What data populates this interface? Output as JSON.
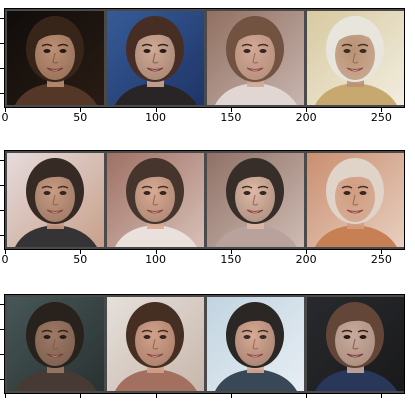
{
  "figure": {
    "background": "#ffffff",
    "panel_frame_color": "#4a4a4a",
    "x_tick_labels": [
      "0",
      "50",
      "100",
      "150",
      "200",
      "250"
    ]
  },
  "rows": [
    {
      "show_tick_labels": true,
      "faces": [
        {
          "name": "face-1-1",
          "bg": "#0f0c0a",
          "bg2": "#2a1c14",
          "skin": "#c99a7c",
          "hair": "#3a2619",
          "shirt": "#5a3a2a"
        },
        {
          "name": "face-1-2",
          "bg": "#3a5f9c",
          "bg2": "#1f3568",
          "skin": "#e0b49a",
          "hair": "#4a2e20",
          "shirt": "#2b2422"
        },
        {
          "name": "face-1-3",
          "bg": "#8c6a5a",
          "bg2": "#c8b6b0",
          "skin": "#d2a893",
          "hair": "#6b4a37",
          "shirt": "#e4dad6"
        },
        {
          "name": "face-1-4",
          "bg": "#d6c79a",
          "bg2": "#f2ede0",
          "skin": "#b68a6a",
          "hair": "#e8e4dc",
          "shirt": "#c4a264"
        }
      ]
    },
    {
      "show_tick_labels": true,
      "faces": [
        {
          "name": "face-2-1",
          "bg": "#e8e0e4",
          "bg2": "#c8a08a",
          "skin": "#c89a82",
          "hair": "#2a201c",
          "shirt": "#2a2a30"
        },
        {
          "name": "face-2-2",
          "bg": "#9a6a5e",
          "bg2": "#d8c0b8",
          "skin": "#d8a890",
          "hair": "#3a2a22",
          "shirt": "#ece4e0"
        },
        {
          "name": "face-2-3",
          "bg": "#8a6a60",
          "bg2": "#d0bcb4",
          "skin": "#e0b8a4",
          "hair": "#2c221e",
          "shirt": "#b8a09a"
        },
        {
          "name": "face-2-4",
          "bg": "#c88a6a",
          "bg2": "#e8d0c0",
          "skin": "#d09a7c",
          "hair": "#e0d4c8",
          "shirt": "#c47a4a"
        }
      ]
    },
    {
      "show_tick_labels": false,
      "faces": [
        {
          "name": "face-3-1",
          "bg": "#4a5a5a",
          "bg2": "#2a3232",
          "skin": "#a8806a",
          "hair": "#2a201a",
          "shirt": "#4a3a34"
        },
        {
          "name": "face-3-2",
          "bg": "#e8e4e0",
          "bg2": "#c8b8ac",
          "skin": "#d4a088",
          "hair": "#3a2418",
          "shirt": "#a06a58"
        },
        {
          "name": "face-3-3",
          "bg": "#bfd2e0",
          "bg2": "#e8eef4",
          "skin": "#d8a48c",
          "hair": "#1c1614",
          "shirt": "#2a3a4a"
        },
        {
          "name": "face-3-4",
          "bg": "#2a2c30",
          "bg2": "#1a1a1c",
          "skin": "#d8b8a8",
          "hair": "#6a4a3a",
          "shirt": "#2a3a60"
        }
      ]
    }
  ]
}
